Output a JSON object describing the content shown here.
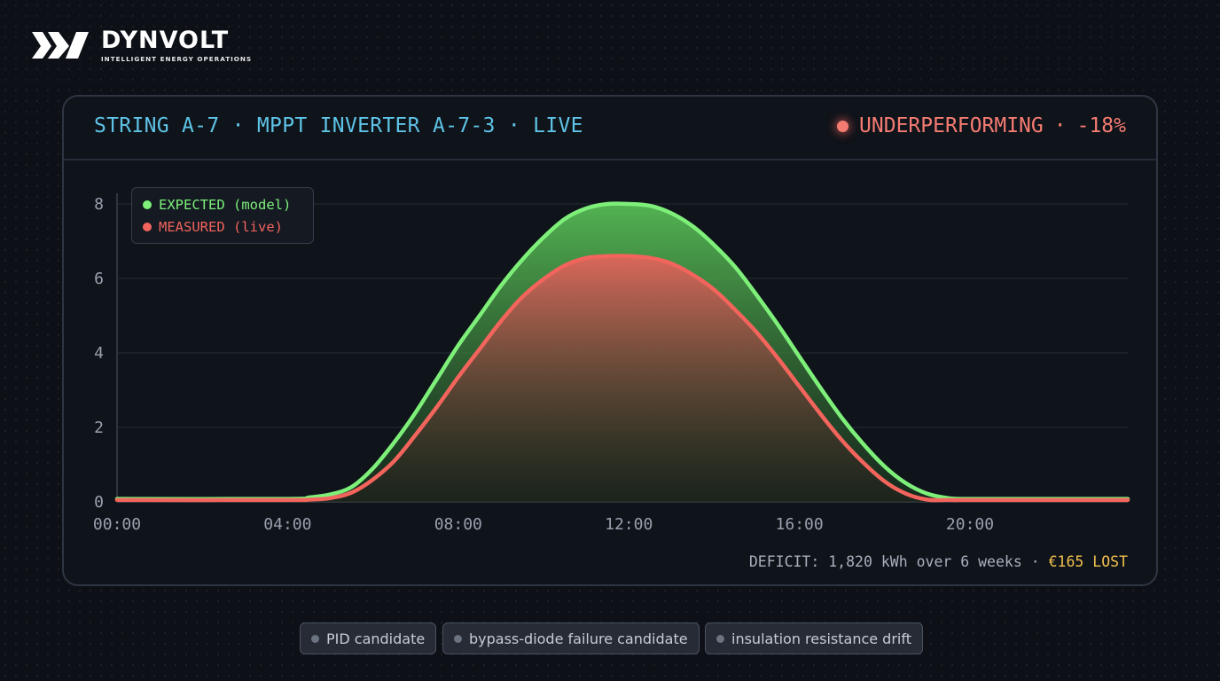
{
  "brand": {
    "name": "DYNVOLT",
    "tagline": "INTELLIGENT ENERGY OPERATIONS"
  },
  "card": {
    "title": "STRING A-7 · MPPT INVERTER A-7-3 · LIVE",
    "status": {
      "label": "UNDERPERFORMING",
      "separator": "·",
      "delta": "-18%",
      "color": "#f47b72"
    }
  },
  "colors": {
    "expected": "#7ef07a",
    "measured": "#f2645c",
    "accent": "#5ec3e6",
    "lost": "#f2c14e"
  },
  "chart_data": {
    "type": "area",
    "legend": [
      {
        "label": "EXPECTED (model)",
        "color": "#7ef07a"
      },
      {
        "label": "MEASURED (live)",
        "color": "#f2645c"
      }
    ],
    "legend_position": "top-left",
    "x_ticks": [
      "00:00",
      "04:00",
      "08:00",
      "12:00",
      "16:00",
      "20:00"
    ],
    "y_ticks": [
      "0",
      "2",
      "4",
      "6",
      "8"
    ],
    "xlim": [
      0,
      23.7
    ],
    "ylim": [
      0,
      8
    ],
    "grid": true,
    "series": [
      {
        "name": "EXPECTED (model)",
        "x": [
          0,
          4,
          4.5,
          5,
          5.5,
          6,
          6.5,
          7,
          7.5,
          8,
          8.5,
          9,
          9.5,
          10,
          10.5,
          11,
          11.5,
          12,
          12.5,
          13,
          13.5,
          14,
          14.5,
          15,
          15.5,
          16,
          16.5,
          17,
          17.5,
          18,
          18.5,
          19,
          19.5,
          20,
          20.5,
          21,
          23.7
        ],
        "y": [
          0.08,
          0.08,
          0.12,
          0.2,
          0.4,
          0.9,
          1.6,
          2.4,
          3.3,
          4.2,
          5.0,
          5.8,
          6.5,
          7.1,
          7.6,
          7.88,
          8.0,
          8.0,
          7.95,
          7.75,
          7.4,
          6.9,
          6.3,
          5.55,
          4.75,
          3.9,
          3.05,
          2.25,
          1.55,
          0.95,
          0.5,
          0.22,
          0.1,
          0.08,
          0.08,
          0.08,
          0.08
        ]
      },
      {
        "name": "MEASURED (live)",
        "x": [
          0,
          4,
          4.5,
          5,
          5.5,
          6,
          6.5,
          7,
          7.5,
          8,
          8.5,
          9,
          9.5,
          10,
          10.5,
          11,
          11.5,
          12,
          12.5,
          13,
          13.5,
          14,
          14.5,
          15,
          15.5,
          16,
          16.5,
          17,
          17.5,
          18,
          18.5,
          19,
          19.5,
          20,
          20.5,
          21,
          23.7
        ],
        "y": [
          0.05,
          0.05,
          0.06,
          0.1,
          0.25,
          0.6,
          1.1,
          1.8,
          2.55,
          3.35,
          4.1,
          4.85,
          5.5,
          5.98,
          6.35,
          6.55,
          6.6,
          6.6,
          6.55,
          6.4,
          6.1,
          5.7,
          5.15,
          4.55,
          3.85,
          3.1,
          2.35,
          1.65,
          1.05,
          0.55,
          0.22,
          0.06,
          0.05,
          0.05,
          0.05,
          0.05,
          0.05
        ]
      }
    ]
  },
  "deficit": {
    "text": "DEFICIT: 1,820 kWh over 6 weeks · ",
    "lost": "€165 LOST"
  },
  "tags": [
    {
      "label": "PID candidate"
    },
    {
      "label": "bypass-diode failure candidate"
    },
    {
      "label": "insulation resistance drift"
    }
  ]
}
